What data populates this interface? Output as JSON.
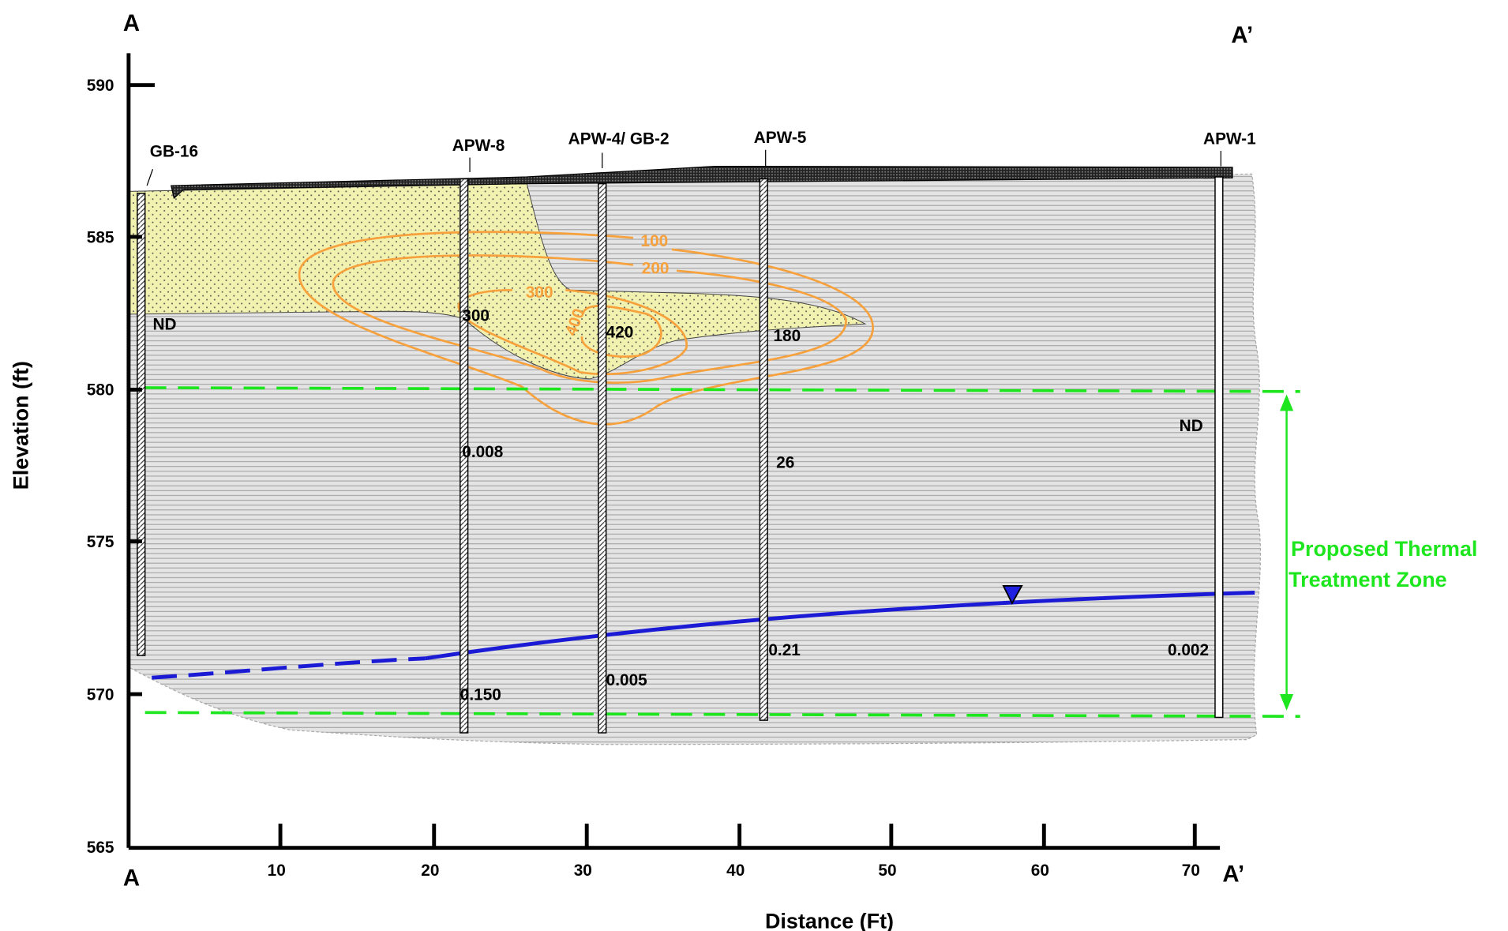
{
  "corner_labels": {
    "top_left": "A",
    "top_right": "A’",
    "bottom_left": "A",
    "bottom_right": "A’"
  },
  "axes": {
    "y_label": "Elevation  (ft)",
    "x_label": "Distance (Ft)",
    "y_ticks": [
      "590",
      "585",
      "580",
      "575",
      "570",
      "565"
    ],
    "x_ticks": [
      "10",
      "20",
      "30",
      "40",
      "50",
      "60",
      "70"
    ]
  },
  "wells": [
    {
      "name": "GB-16",
      "values": [
        "ND"
      ]
    },
    {
      "name": "APW-8",
      "values": [
        "300",
        "0.008",
        "0.150"
      ]
    },
    {
      "name": "APW-4/ GB-2",
      "values": [
        "420",
        "0.005"
      ]
    },
    {
      "name": "APW-5",
      "values": [
        "180",
        "26",
        "0.21"
      ]
    },
    {
      "name": "APW-1",
      "values": [
        "ND",
        "0.002"
      ]
    }
  ],
  "contours": [
    "100",
    "200",
    "300",
    "400"
  ],
  "zone_label": [
    "Proposed Thermal",
    "Treatment Zone"
  ]
}
